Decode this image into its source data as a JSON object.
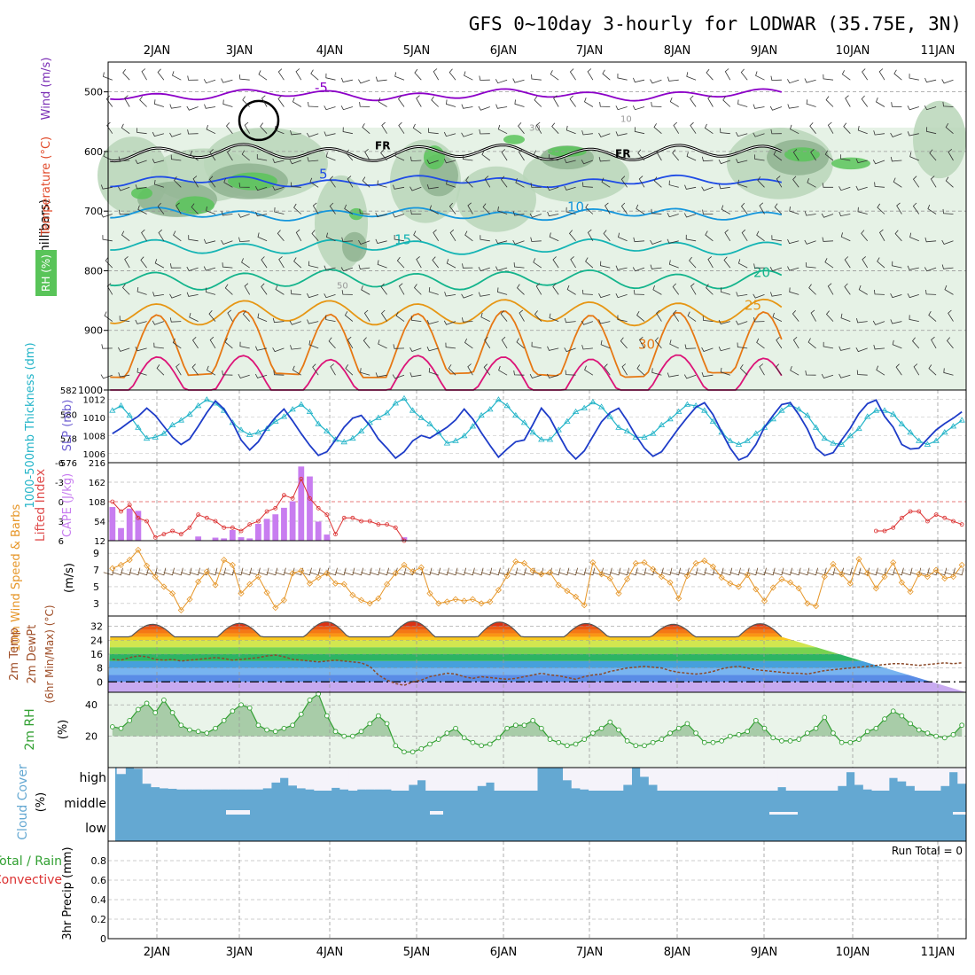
{
  "chart_data": {
    "type": "meteogram",
    "title": "GFS 0~10day 3-hourly for LODWAR (35.75E, 3N)",
    "dates": [
      "2JAN",
      "3JAN",
      "4JAN",
      "5JAN",
      "6JAN",
      "7JAN",
      "8JAN",
      "9JAN",
      "10JAN",
      "11JAN"
    ],
    "colors": {
      "rh_light": "#e6f2e6",
      "rh_mid": "#b9d6b9",
      "rh_dark": "#8fb390",
      "rh_green": "#59c459",
      "temp_purple": "#8c00c8",
      "temp_blue": "#1e4be6",
      "temp_sky": "#1496dc",
      "temp_cyan": "#14b4b4",
      "temp_teal": "#14b48c",
      "temp_orange": "#e69614",
      "temp_dorange": "#e67814",
      "temp_pink": "#dc1478",
      "slp": "#1e3cc8",
      "thick": "#22b4c8",
      "cape": "#c87df0",
      "li": "#dc3232",
      "wind10": "#e69628",
      "rh2": "#32a032",
      "cloud": "#64a8d2",
      "cloud_gap": "#f5f3fa"
    },
    "panels": [
      {
        "id": "upper_air",
        "axis_label": "(millibars)",
        "legend_labels": [
          "Wind (m/s)",
          "Temperature (°C)",
          "RH (%)"
        ],
        "y_ticks": [
          500,
          600,
          700,
          800,
          900,
          1000
        ],
        "ylim": [
          1000,
          450
        ],
        "freezing_label": "FR",
        "temp_levels": [
          {
            "value": -5,
            "label": "-5",
            "color_key": "temp_purple",
            "mean": 505,
            "amp": 6
          },
          {
            "value": 0,
            "label": "",
            "color_key": "temp_purple",
            "mean": 602,
            "amp": 10
          },
          {
            "value": 5,
            "label": "5",
            "color_key": "temp_blue",
            "mean": 650,
            "amp": 6
          },
          {
            "value": 10,
            "label": "10",
            "color_key": "temp_sky",
            "mean": 705,
            "amp": 7
          },
          {
            "value": 15,
            "label": "15",
            "color_key": "temp_cyan",
            "mean": 760,
            "amp": 9
          },
          {
            "value": 20,
            "label": "20",
            "color_key": "temp_teal",
            "mean": 815,
            "amp": 13
          },
          {
            "value": 25,
            "label": "25",
            "color_key": "temp_orange",
            "mean": 870,
            "amp": 18
          },
          {
            "value": 30,
            "label": "30",
            "color_key": "temp_dorange",
            "mean": 935,
            "amp": 40
          },
          {
            "value": 35,
            "label": "",
            "color_key": "temp_pink",
            "mean": 985,
            "amp": 25
          }
        ],
        "rh_labels": [
          "10",
          "30",
          "50"
        ]
      },
      {
        "id": "slp_thickness",
        "axis_labels": [
          "1000-500mb Thickness (dm)",
          "SLP (mb)"
        ],
        "thickness_ticks": [
          576,
          578,
          580,
          582
        ],
        "slp_ticks": [
          1006,
          1008,
          1010,
          1012
        ],
        "thickness_range": [
          576,
          582
        ],
        "slp_range": [
          1005,
          1013
        ],
        "slp_values": [
          1008.2,
          1008.8,
          1009.5,
          1010.1,
          1011.0,
          1010.2,
          1009.0,
          1007.8,
          1007.0,
          1007.6,
          1009.0,
          1010.5,
          1011.8,
          1010.9,
          1009.4,
          1007.5,
          1006.4,
          1007.3,
          1008.8,
          1010.0,
          1010.9,
          1009.6,
          1008.2,
          1006.9,
          1005.8,
          1006.2,
          1007.5,
          1008.9,
          1009.9,
          1010.2,
          1009.1,
          1007.6,
          1006.6,
          1005.5,
          1006.2,
          1007.4,
          1008.0,
          1007.7,
          1008.3,
          1008.9,
          1009.7,
          1010.9,
          1009.8,
          1008.3,
          1006.9,
          1005.6,
          1006.5,
          1007.3,
          1007.5,
          1009.2,
          1011.0,
          1009.9,
          1008.1,
          1006.4,
          1005.4,
          1006.3,
          1007.9,
          1009.5,
          1010.5,
          1011.0,
          1009.6,
          1008.0,
          1006.6,
          1005.7,
          1006.2,
          1007.5,
          1008.8,
          1010.0,
          1011.1,
          1011.6,
          1010.3,
          1008.4,
          1006.6,
          1005.3,
          1005.7,
          1007.0,
          1008.9,
          1010.2,
          1011.4,
          1011.6,
          1010.3,
          1008.7,
          1006.6,
          1005.8,
          1006.1,
          1007.5,
          1008.8,
          1010.4,
          1011.5,
          1011.9,
          1010.1,
          1008.9,
          1007.0,
          1006.5,
          1006.6,
          1007.6,
          1008.6,
          1009.3,
          1009.9,
          1010.6
        ],
        "thickness_values": [
          580.3,
          580.7,
          579.9,
          578.9,
          578.0,
          578.1,
          578.4,
          579.1,
          579.5,
          580.0,
          580.7,
          581.2,
          580.9,
          580.3,
          579.3,
          578.7,
          578.3,
          578.5,
          578.8,
          579.4,
          579.8,
          580.4,
          580.8,
          580.2,
          579.2,
          578.6,
          577.9,
          577.7,
          578.0,
          578.6,
          579.3,
          579.7,
          580.1,
          580.9,
          581.3,
          580.3,
          579.7,
          579.2,
          578.5,
          577.6,
          577.8,
          578.2,
          579.0,
          579.9,
          580.4,
          581.2,
          580.7,
          579.9,
          579.3,
          578.5,
          577.9,
          577.9,
          578.7,
          579.4,
          580.2,
          580.5,
          581.0,
          580.6,
          579.8,
          578.9,
          578.6,
          578.1,
          578.1,
          578.4,
          579.1,
          579.6,
          580.2,
          580.8,
          580.7,
          580.3,
          579.4,
          578.5,
          577.8,
          577.5,
          577.8,
          578.4,
          578.9,
          579.6,
          580.3,
          580.8,
          580.4,
          579.9,
          578.9,
          578.0,
          577.6,
          577.5,
          578.2,
          578.8,
          579.8,
          580.3,
          580.3,
          580.0,
          579.2,
          578.5,
          577.8,
          577.5,
          577.8,
          578.5,
          579.0,
          579.5
        ]
      },
      {
        "id": "cape_li",
        "axis_labels": [
          "Lifted Index",
          "CAPE (J/kg)"
        ],
        "li_ticks": [
          "6",
          "3",
          "0",
          "-3",
          "-6"
        ],
        "cape_ticks": [
          "12",
          "54",
          "108",
          "162",
          "216"
        ],
        "cape_range": [
          12,
          216
        ],
        "li_range": [
          6,
          -6
        ],
        "cape_values": [
          100,
          45,
          96,
          90,
          10,
          0,
          0,
          0,
          0,
          0,
          23,
          0,
          20,
          18,
          40,
          21,
          18,
          56,
          69,
          81,
          98,
          115,
          206,
          180,
          62,
          28,
          0,
          0,
          0,
          0,
          0,
          0,
          0,
          0,
          21,
          0,
          0,
          0,
          0,
          0,
          0,
          0,
          0,
          0,
          0,
          0,
          0,
          0,
          0,
          0,
          0,
          0,
          0,
          0,
          0,
          0,
          0,
          0,
          0,
          0,
          0,
          0,
          0,
          0,
          0,
          0,
          0,
          0,
          0,
          0,
          0,
          0,
          0,
          0,
          0,
          0,
          0,
          0,
          0,
          0,
          0,
          0,
          0,
          0,
          0,
          0,
          0,
          0,
          0,
          0,
          0,
          0,
          0,
          0,
          0,
          0,
          0,
          0,
          0,
          0
        ],
        "li_values": [
          0,
          1.5,
          0.5,
          2.5,
          3,
          5.5,
          5,
          4.5,
          5,
          4,
          2,
          2.5,
          3,
          4,
          4,
          4.5,
          3.5,
          3,
          1.5,
          1,
          -1,
          -0.5,
          -3.5,
          -0.5,
          1,
          2,
          5,
          2.5,
          2.5,
          3,
          3,
          3.5,
          3.5,
          4,
          6.5,
          null,
          null,
          null,
          null,
          null,
          null,
          null,
          null,
          null,
          null,
          null,
          null,
          null,
          null,
          null,
          null,
          null,
          null,
          null,
          null,
          null,
          null,
          null,
          null,
          null,
          null,
          null,
          null,
          null,
          null,
          null,
          null,
          null,
          null,
          null,
          null,
          null,
          null,
          null,
          null,
          null,
          null,
          null,
          null,
          null,
          null,
          null,
          null,
          null,
          null,
          null,
          null,
          null,
          null,
          4.5,
          4.5,
          4,
          2.5,
          1.5,
          1.5,
          3,
          2,
          2.5,
          3,
          3.5
        ]
      },
      {
        "id": "wind10m",
        "axis_labels": [
          "10m Wind Speed & Barbs",
          "(m/s)"
        ],
        "y_ticks": [
          3,
          5,
          7,
          9
        ],
        "ylim": [
          1.5,
          10.5
        ],
        "values": [
          7.2,
          7.6,
          8.2,
          9.4,
          7.5,
          6.2,
          5.0,
          4.2,
          2.2,
          3.5,
          5.6,
          6.8,
          5.2,
          8.2,
          7.6,
          4.2,
          5.3,
          6.2,
          4.3,
          2.5,
          3.4,
          6.6,
          6.9,
          5.4,
          6.1,
          6.6,
          5.4,
          5.3,
          4.0,
          3.4,
          3.0,
          3.6,
          5.3,
          6.6,
          7.6,
          6.8,
          7.3,
          4.2,
          3.0,
          3.2,
          3.5,
          3.3,
          3.5,
          3.0,
          3.2,
          4.6,
          6.3,
          8.0,
          7.8,
          6.9,
          6.5,
          6.7,
          5.2,
          4.5,
          3.8,
          2.8,
          7.9,
          6.5,
          6.0,
          4.2,
          5.9,
          7.8,
          7.9,
          7.1,
          6.2,
          5.5,
          3.6,
          6.3,
          7.8,
          8.1,
          7.4,
          6.1,
          5.4,
          5.0,
          6.4,
          4.7,
          3.3,
          4.9,
          5.9,
          5.5,
          4.8,
          3.0,
          2.7,
          6.2,
          7.7,
          6.5,
          5.4,
          8.3,
          6.6,
          4.8,
          6.2,
          7.9,
          5.5,
          4.4,
          6.5,
          6.2,
          7.0,
          6.0,
          6.2,
          7.6
        ]
      },
      {
        "id": "temp2m",
        "axis_labels": [
          "2m Temp",
          "2m DewPt",
          "(6hr Min/Max) (°C)"
        ],
        "y_ticks": [
          0,
          8,
          16,
          24,
          32
        ],
        "ylim": [
          -6,
          38
        ],
        "temp_min": 26,
        "temp_max": 35,
        "dew_values": [
          13,
          12.5,
          14,
          15,
          14.5,
          13,
          12.5,
          13,
          12,
          12.5,
          13,
          13.5,
          14,
          13.5,
          12.5,
          13,
          13.5,
          14,
          15,
          15.5,
          14.5,
          13,
          12.5,
          12,
          11.5,
          12,
          12.5,
          12,
          11.5,
          11,
          9,
          4,
          1,
          -1,
          -2,
          0,
          1,
          3,
          4,
          5,
          4.5,
          3,
          2,
          3,
          2.5,
          2,
          1.5,
          2,
          3,
          4,
          5,
          4,
          3.5,
          2.5,
          1.5,
          3,
          4,
          4.5,
          6,
          7,
          8,
          8.5,
          9,
          8.5,
          8,
          6.5,
          5.5,
          5,
          4.5,
          5,
          6,
          7.5,
          8.5,
          9,
          8,
          7,
          6.5,
          6,
          5.5,
          5,
          5,
          4.5,
          5.5,
          6.5,
          7,
          7.5,
          8,
          8.5,
          9,
          9.5,
          10,
          10.5,
          10.5,
          10,
          9.5,
          10,
          10.5,
          11,
          10.5,
          11
        ]
      },
      {
        "id": "rh2m",
        "axis_labels": [
          "2m RH",
          "(%)"
        ],
        "y_ticks": [
          20,
          40
        ],
        "ylim": [
          0,
          48
        ],
        "values": [
          26,
          25,
          30,
          37,
          41,
          35,
          43,
          35,
          27,
          24,
          23,
          22,
          25,
          30,
          36,
          40,
          38,
          27,
          24,
          23,
          25,
          27,
          34,
          43,
          47,
          33,
          23,
          20,
          20,
          23,
          28,
          33,
          28,
          14,
          10,
          10,
          12,
          15,
          18,
          22,
          25,
          19,
          16,
          14,
          15,
          19,
          25,
          27,
          27,
          30,
          25,
          18,
          16,
          14,
          15,
          18,
          22,
          25,
          29,
          24,
          17,
          14,
          14,
          16,
          18,
          22,
          25,
          28,
          22,
          16,
          16,
          17,
          20,
          21,
          23,
          30,
          25,
          19,
          17,
          17,
          18,
          22,
          25,
          32,
          22,
          16,
          16,
          18,
          23,
          25,
          31,
          36,
          33,
          28,
          24,
          22,
          20,
          19,
          21,
          27
        ]
      },
      {
        "id": "cloud",
        "axis_labels": [
          "Cloud Cover",
          "(%)"
        ],
        "levels": [
          "high",
          "middle",
          "low"
        ],
        "high_values": [
          100,
          72,
          100,
          95,
          30,
          15,
          10,
          8,
          5,
          5,
          5,
          5,
          5,
          5,
          5,
          5,
          5,
          5,
          10,
          35,
          55,
          22,
          10,
          5,
          0,
          0,
          12,
          5,
          0,
          5,
          5,
          5,
          5,
          0,
          0,
          25,
          45,
          0,
          0,
          0,
          0,
          0,
          0,
          20,
          35,
          0,
          0,
          0,
          0,
          0,
          100,
          100,
          100,
          45,
          10,
          5,
          0,
          0,
          0,
          0,
          25,
          100,
          60,
          25,
          0,
          0,
          0,
          0,
          0,
          0,
          0,
          0,
          0,
          0,
          0,
          0,
          0,
          0,
          15,
          0,
          0,
          0,
          0,
          0,
          0,
          20,
          80,
          25,
          5,
          0,
          0,
          55,
          40,
          20,
          0,
          0,
          0,
          20,
          80,
          30
        ]
      },
      {
        "id": "precip",
        "axis_labels": [
          "3hr Precip (mm)",
          "Total / Rain",
          "Convective"
        ],
        "run_total": "Run Total = 0",
        "y_ticks": [
          "0",
          "0.2",
          "0.4",
          "0.6",
          "0.8"
        ],
        "ylim": [
          0,
          1
        ],
        "values": []
      }
    ]
  }
}
